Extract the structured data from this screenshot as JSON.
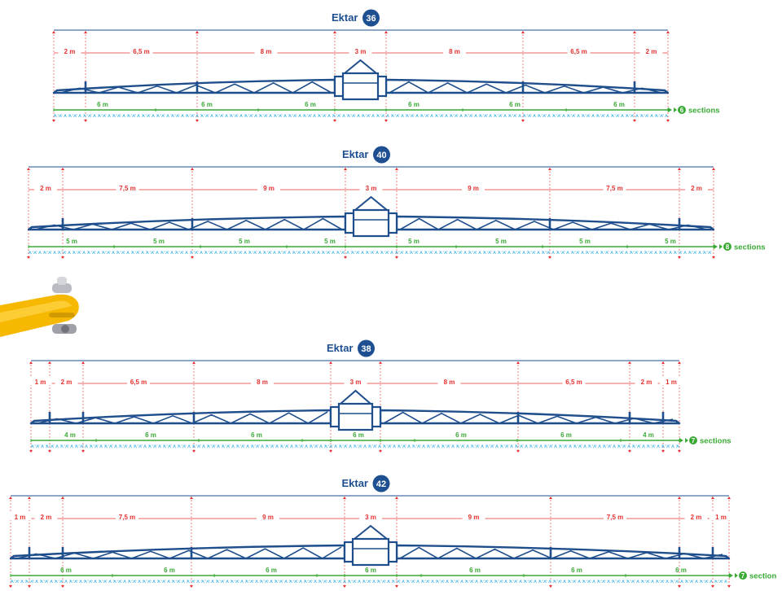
{
  "colors": {
    "brand_blue": "#1d4f91",
    "boom_blue": "#1f4e8c",
    "dimension_red": "#e4312f",
    "section_green": "#3aaa35",
    "nozzle_cyan": "#41b6e6",
    "frame_yellow": "#f6b800"
  },
  "decor": {
    "icon": "yellow-hydraulic-arm-icon"
  },
  "booms": [
    {
      "name": "Ektar",
      "number": "36",
      "widths": [
        "2 m",
        "6,5 m",
        "8 m",
        "3 m",
        "8 m",
        "6,5 m",
        "2 m"
      ],
      "sections": [
        "6 m",
        "6 m",
        "6 m",
        "6 m",
        "6 m",
        "6 m"
      ],
      "section_count": "6",
      "section_word": "sections"
    },
    {
      "name": "Ektar",
      "number": "40",
      "widths": [
        "2 m",
        "7,5 m",
        "9 m",
        "3 m",
        "9 m",
        "7,5 m",
        "2 m"
      ],
      "sections": [
        "5 m",
        "5 m",
        "5 m",
        "5 m",
        "5 m",
        "5 m",
        "5 m",
        "5 m"
      ],
      "section_count": "8",
      "section_word": "sections"
    },
    {
      "name": "Ektar",
      "number": "38",
      "widths": [
        "1 m",
        "2 m",
        "6,5 m",
        "8 m",
        "3 m",
        "8 m",
        "6,5 m",
        "2 m",
        "1 m"
      ],
      "sections": [
        "4 m",
        "6 m",
        "6 m",
        "6 m",
        "6 m",
        "6 m",
        "4 m"
      ],
      "section_count": "7",
      "section_word": "sections"
    },
    {
      "name": "Ektar",
      "number": "42",
      "widths": [
        "1 m",
        "2 m",
        "7,5 m",
        "9 m",
        "3 m",
        "9 m",
        "7,5 m",
        "2 m",
        "1 m"
      ],
      "sections": [
        "6 m",
        "6 m",
        "6 m",
        "6 m",
        "6 m",
        "6 m",
        "6 m"
      ],
      "section_count": "7",
      "section_word": "section"
    }
  ]
}
